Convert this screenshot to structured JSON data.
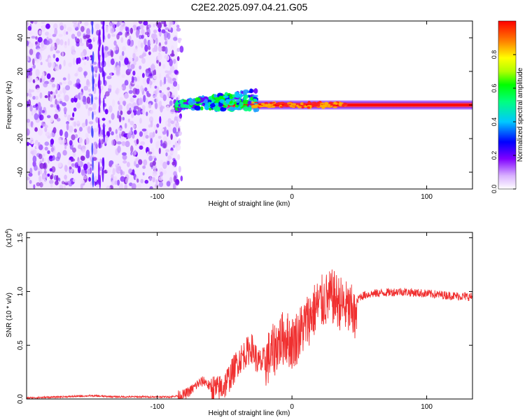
{
  "title": "C2E2.2025.097.04.21.G05",
  "chart_data": [
    {
      "type": "heatmap",
      "xlabel": "Height of straight line (km)",
      "ylabel": "Frequency (Hz)",
      "xlim": [
        -197,
        134
      ],
      "ylim": [
        -50,
        50
      ],
      "xticks": [
        -100,
        0,
        100
      ],
      "yticks": [
        -40,
        -20,
        0,
        20,
        40
      ],
      "colorbar": {
        "label": "Normalized spectral amplitude",
        "range": [
          0,
          1
        ],
        "ticks": [
          "0.0",
          "0.2",
          "0.4",
          "0.6",
          "0.8"
        ]
      },
      "features": [
        {
          "name": "broadband scatter",
          "x_range": [
            -197,
            -85
          ],
          "freq_range": [
            -50,
            50
          ],
          "amplitude": 0.1
        },
        {
          "name": "near-zero carrier",
          "x_range": [
            -85,
            134
          ],
          "center_freq": 0,
          "amplitude": 1.0
        }
      ]
    },
    {
      "type": "line",
      "xlabel": "Height of straight line (km)",
      "ylabel": "SNR (10 * v/v)",
      "scale_label": "(x10",
      "scale_exp": "4",
      "scale_close": ")",
      "xlim": [
        -197,
        134
      ],
      "ylim": [
        0,
        1.55
      ],
      "xticks": [
        -100,
        0,
        100
      ],
      "yticks": [
        "0.0",
        "0.5",
        "1.0",
        "1.5"
      ],
      "series": [
        {
          "name": "SNR",
          "color": "#f03030",
          "x": [
            -197,
            -170,
            -150,
            -130,
            -110,
            -90,
            -80,
            -75,
            -70,
            -65,
            -60,
            -55,
            -50,
            -45,
            -40,
            -35,
            -30,
            -25,
            -20,
            -15,
            -10,
            -5,
            0,
            5,
            10,
            15,
            20,
            25,
            30,
            35,
            40,
            45,
            50,
            55,
            60,
            70,
            80,
            90,
            100,
            110,
            120,
            134
          ],
          "y": [
            0.01,
            0.02,
            0.03,
            0.02,
            0.02,
            0.02,
            0.04,
            0.08,
            0.14,
            0.17,
            0.1,
            0.08,
            0.13,
            0.23,
            0.35,
            0.42,
            0.48,
            0.33,
            0.35,
            0.42,
            0.53,
            0.58,
            0.52,
            0.6,
            0.7,
            0.8,
            0.88,
            0.92,
            0.95,
            0.9,
            0.85,
            0.8,
            0.95,
            0.97,
            0.98,
            0.99,
            1.0,
            0.99,
            0.98,
            0.97,
            0.96,
            0.95
          ]
        }
      ]
    }
  ]
}
